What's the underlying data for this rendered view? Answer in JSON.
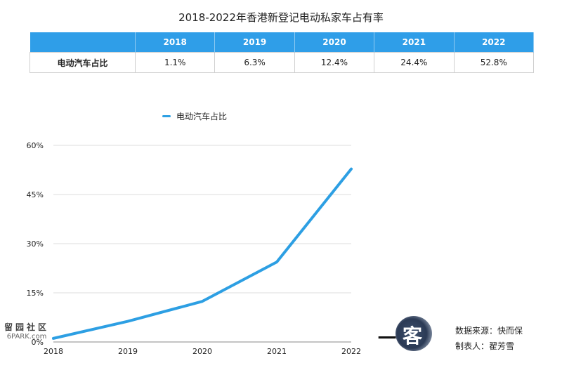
{
  "title": "2018-2022年香港新登记电动私家车占有率",
  "table": {
    "headers": [
      "",
      "2018",
      "2019",
      "2020",
      "2021",
      "2022"
    ],
    "row_label": "电动汽车占比",
    "values": [
      "1.1%",
      "6.3%",
      "12.4%",
      "24.4%",
      "52.8%"
    ]
  },
  "chart_data": {
    "type": "line",
    "categories": [
      "2018",
      "2019",
      "2020",
      "2021",
      "2022"
    ],
    "series": [
      {
        "name": "电动汽车占比",
        "values": [
          1.1,
          6.3,
          12.4,
          24.4,
          52.8
        ]
      }
    ],
    "yticks": [
      "0%",
      "15%",
      "30%",
      "45%",
      "60%"
    ],
    "ylim": [
      0,
      60
    ],
    "grid": true,
    "legend": "top-left",
    "color": "#2d9fe3"
  },
  "watermark": {
    "cn": "留园社区",
    "en": "6PARK.com"
  },
  "logo": {
    "char1": "一",
    "char2": "客"
  },
  "credits": {
    "source": "数据来源：快而保",
    "author": "制表人：翟芳雪"
  }
}
